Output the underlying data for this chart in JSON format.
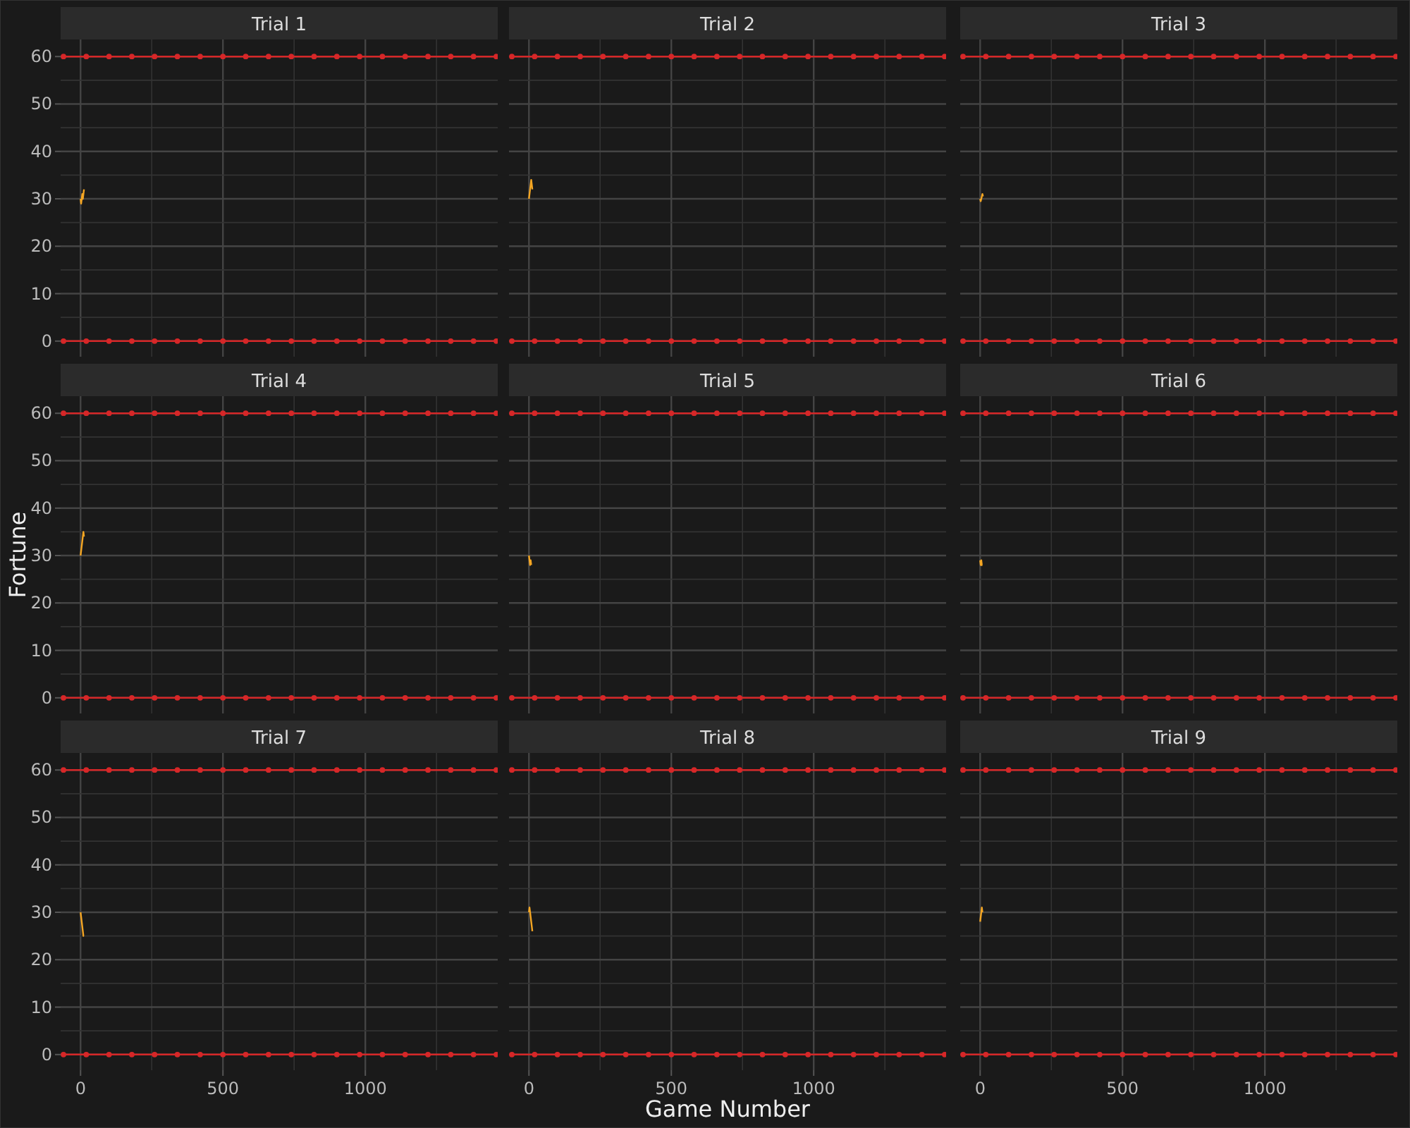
{
  "chart_data": [
    {
      "type": "line",
      "title": "Trial 1",
      "x": [
        0,
        2,
        4,
        6,
        8,
        10,
        12
      ],
      "series": [
        {
          "color": "#f5a623",
          "values": [
            30,
            29,
            30,
            31,
            30,
            31,
            32
          ]
        },
        {
          "color": "#d62728",
          "marker": "circle",
          "x": [
            -60,
            20,
            100,
            180,
            260,
            340,
            420,
            500,
            580,
            660,
            740,
            820,
            900,
            980,
            1060,
            1140,
            1220,
            1300,
            1380,
            1460
          ],
          "values": [
            0,
            0,
            0,
            0,
            0,
            0,
            0,
            0,
            0,
            0,
            0,
            0,
            0,
            0,
            0,
            0,
            0,
            0,
            0,
            0
          ]
        },
        {
          "color": "#d62728",
          "marker": "circle",
          "x": [
            -60,
            20,
            100,
            180,
            260,
            340,
            420,
            500,
            580,
            660,
            740,
            820,
            900,
            980,
            1060,
            1140,
            1220,
            1300,
            1380,
            1460
          ],
          "values": [
            60,
            60,
            60,
            60,
            60,
            60,
            60,
            60,
            60,
            60,
            60,
            60,
            60,
            60,
            60,
            60,
            60,
            60,
            60,
            60
          ]
        }
      ],
      "xlim": [
        -70,
        1465
      ],
      "ylim": [
        -3.3,
        63.6
      ],
      "xticks": [
        0,
        {
          "value": 250,
          "label": null
        },
        500,
        {
          "value": 750,
          "label": null
        },
        1000,
        {
          "value": 1250,
          "label": null
        }
      ],
      "yticks": [
        0,
        {
          "value": 5,
          "label": null
        },
        10,
        {
          "value": 15,
          "label": null
        },
        20,
        {
          "value": 25,
          "label": null
        },
        30,
        {
          "value": 35,
          "label": null
        },
        40,
        {
          "value": 45,
          "label": null
        },
        50,
        {
          "value": 55,
          "label": null
        },
        60
      ],
      "grid": true,
      "tick_labels": "y"
    },
    {
      "type": "line",
      "title": "Trial 2",
      "x": [
        0,
        2,
        4,
        6,
        8,
        10,
        12
      ],
      "series": [
        {
          "color": "#f5a623",
          "values": [
            30,
            31,
            32,
            33,
            34,
            33,
            32
          ]
        },
        {
          "color": "#d62728",
          "marker": "circle",
          "x": [
            -60,
            20,
            100,
            180,
            260,
            340,
            420,
            500,
            580,
            660,
            740,
            820,
            900,
            980,
            1060,
            1140,
            1220,
            1300,
            1380,
            1460
          ],
          "values": [
            0,
            0,
            0,
            0,
            0,
            0,
            0,
            0,
            0,
            0,
            0,
            0,
            0,
            0,
            0,
            0,
            0,
            0,
            0,
            0
          ]
        },
        {
          "color": "#d62728",
          "marker": "circle",
          "x": [
            -60,
            20,
            100,
            180,
            260,
            340,
            420,
            500,
            580,
            660,
            740,
            820,
            900,
            980,
            1060,
            1140,
            1220,
            1300,
            1380,
            1460
          ],
          "values": [
            60,
            60,
            60,
            60,
            60,
            60,
            60,
            60,
            60,
            60,
            60,
            60,
            60,
            60,
            60,
            60,
            60,
            60,
            60,
            60
          ]
        }
      ],
      "xlim": [
        -70,
        1465
      ],
      "ylim": [
        -3.3,
        63.6
      ],
      "xticks": [
        0,
        {
          "value": 250,
          "label": null
        },
        500,
        {
          "value": 750,
          "label": null
        },
        1000,
        {
          "value": 1250,
          "label": null
        }
      ],
      "yticks": [
        0,
        {
          "value": 5,
          "label": null
        },
        10,
        {
          "value": 15,
          "label": null
        },
        20,
        {
          "value": 25,
          "label": null
        },
        30,
        {
          "value": 35,
          "label": null
        },
        40,
        {
          "value": 45,
          "label": null
        },
        50,
        {
          "value": 55,
          "label": null
        },
        60
      ],
      "grid": true,
      "tick_labels": false
    },
    {
      "type": "line",
      "title": "Trial 3",
      "x": [
        0,
        2,
        4,
        6,
        8,
        10
      ],
      "series": [
        {
          "color": "#f5a623",
          "values": [
            30,
            29.5,
            30,
            30.5,
            31,
            30.5
          ]
        },
        {
          "color": "#d62728",
          "marker": "circle",
          "x": [
            -60,
            20,
            100,
            180,
            260,
            340,
            420,
            500,
            580,
            660,
            740,
            820,
            900,
            980,
            1060,
            1140,
            1220,
            1300,
            1380,
            1460
          ],
          "values": [
            0,
            0,
            0,
            0,
            0,
            0,
            0,
            0,
            0,
            0,
            0,
            0,
            0,
            0,
            0,
            0,
            0,
            0,
            0,
            0
          ]
        },
        {
          "color": "#d62728",
          "marker": "circle",
          "x": [
            -60,
            20,
            100,
            180,
            260,
            340,
            420,
            500,
            580,
            660,
            740,
            820,
            900,
            980,
            1060,
            1140,
            1220,
            1300,
            1380,
            1460
          ],
          "values": [
            60,
            60,
            60,
            60,
            60,
            60,
            60,
            60,
            60,
            60,
            60,
            60,
            60,
            60,
            60,
            60,
            60,
            60,
            60,
            60
          ]
        }
      ],
      "xlim": [
        -70,
        1465
      ],
      "ylim": [
        -3.3,
        63.6
      ],
      "xticks": [
        0,
        {
          "value": 250,
          "label": null
        },
        500,
        {
          "value": 750,
          "label": null
        },
        1000,
        {
          "value": 1250,
          "label": null
        }
      ],
      "yticks": [
        0,
        {
          "value": 5,
          "label": null
        },
        10,
        {
          "value": 15,
          "label": null
        },
        20,
        {
          "value": 25,
          "label": null
        },
        30,
        {
          "value": 35,
          "label": null
        },
        40,
        {
          "value": 45,
          "label": null
        },
        50,
        {
          "value": 55,
          "label": null
        },
        60
      ],
      "grid": true,
      "tick_labels": false
    },
    {
      "type": "line",
      "title": "Trial 4",
      "ylabel": "Fortune",
      "x": [
        0,
        2,
        4,
        6,
        8,
        10,
        12
      ],
      "series": [
        {
          "color": "#f5a623",
          "values": [
            30,
            31,
            32,
            33,
            34,
            35,
            34
          ]
        },
        {
          "color": "#d62728",
          "marker": "circle",
          "x": [
            -60,
            20,
            100,
            180,
            260,
            340,
            420,
            500,
            580,
            660,
            740,
            820,
            900,
            980,
            1060,
            1140,
            1220,
            1300,
            1380,
            1460
          ],
          "values": [
            0,
            0,
            0,
            0,
            0,
            0,
            0,
            0,
            0,
            0,
            0,
            0,
            0,
            0,
            0,
            0,
            0,
            0,
            0,
            0
          ]
        },
        {
          "color": "#d62728",
          "marker": "circle",
          "x": [
            -60,
            20,
            100,
            180,
            260,
            340,
            420,
            500,
            580,
            660,
            740,
            820,
            900,
            980,
            1060,
            1140,
            1220,
            1300,
            1380,
            1460
          ],
          "values": [
            60,
            60,
            60,
            60,
            60,
            60,
            60,
            60,
            60,
            60,
            60,
            60,
            60,
            60,
            60,
            60,
            60,
            60,
            60,
            60
          ]
        }
      ],
      "xlim": [
        -70,
        1465
      ],
      "ylim": [
        -3.3,
        63.6
      ],
      "xticks": [
        0,
        {
          "value": 250,
          "label": null
        },
        500,
        {
          "value": 750,
          "label": null
        },
        1000,
        {
          "value": 1250,
          "label": null
        }
      ],
      "yticks": [
        0,
        {
          "value": 5,
          "label": null
        },
        10,
        {
          "value": 15,
          "label": null
        },
        20,
        {
          "value": 25,
          "label": null
        },
        30,
        {
          "value": 35,
          "label": null
        },
        40,
        {
          "value": 45,
          "label": null
        },
        50,
        {
          "value": 55,
          "label": null
        },
        60
      ],
      "grid": true,
      "tick_labels": "y"
    },
    {
      "type": "line",
      "title": "Trial 5",
      "x": [
        0,
        2,
        4,
        6,
        8
      ],
      "series": [
        {
          "color": "#f5a623",
          "values": [
            30,
            29,
            28,
            29,
            28
          ]
        },
        {
          "color": "#d62728",
          "marker": "circle",
          "x": [
            -60,
            20,
            100,
            180,
            260,
            340,
            420,
            500,
            580,
            660,
            740,
            820,
            900,
            980,
            1060,
            1140,
            1220,
            1300,
            1380,
            1460
          ],
          "values": [
            0,
            0,
            0,
            0,
            0,
            0,
            0,
            0,
            0,
            0,
            0,
            0,
            0,
            0,
            0,
            0,
            0,
            0,
            0,
            0
          ]
        },
        {
          "color": "#d62728",
          "marker": "circle",
          "x": [
            -60,
            20,
            100,
            180,
            260,
            340,
            420,
            500,
            580,
            660,
            740,
            820,
            900,
            980,
            1060,
            1140,
            1220,
            1300,
            1380,
            1460
          ],
          "values": [
            60,
            60,
            60,
            60,
            60,
            60,
            60,
            60,
            60,
            60,
            60,
            60,
            60,
            60,
            60,
            60,
            60,
            60,
            60,
            60
          ]
        }
      ],
      "xlim": [
        -70,
        1465
      ],
      "ylim": [
        -3.3,
        63.6
      ],
      "xticks": [
        0,
        {
          "value": 250,
          "label": null
        },
        500,
        {
          "value": 750,
          "label": null
        },
        1000,
        {
          "value": 1250,
          "label": null
        }
      ],
      "yticks": [
        0,
        {
          "value": 5,
          "label": null
        },
        10,
        {
          "value": 15,
          "label": null
        },
        20,
        {
          "value": 25,
          "label": null
        },
        30,
        {
          "value": 35,
          "label": null
        },
        40,
        {
          "value": 45,
          "label": null
        },
        50,
        {
          "value": 55,
          "label": null
        },
        60
      ],
      "grid": true,
      "tick_labels": false
    },
    {
      "type": "line",
      "title": "Trial 6",
      "x": [
        0,
        2,
        4,
        6,
        8
      ],
      "series": [
        {
          "color": "#f5a623",
          "values": [
            29,
            28,
            29,
            28,
            28
          ]
        },
        {
          "color": "#d62728",
          "marker": "circle",
          "x": [
            -60,
            20,
            100,
            180,
            260,
            340,
            420,
            500,
            580,
            660,
            740,
            820,
            900,
            980,
            1060,
            1140,
            1220,
            1300,
            1380,
            1460
          ],
          "values": [
            0,
            0,
            0,
            0,
            0,
            0,
            0,
            0,
            0,
            0,
            0,
            0,
            0,
            0,
            0,
            0,
            0,
            0,
            0,
            0
          ]
        },
        {
          "color": "#d62728",
          "marker": "circle",
          "x": [
            -60,
            20,
            100,
            180,
            260,
            340,
            420,
            500,
            580,
            660,
            740,
            820,
            900,
            980,
            1060,
            1140,
            1220,
            1300,
            1380,
            1460
          ],
          "values": [
            60,
            60,
            60,
            60,
            60,
            60,
            60,
            60,
            60,
            60,
            60,
            60,
            60,
            60,
            60,
            60,
            60,
            60,
            60,
            60
          ]
        }
      ],
      "xlim": [
        -70,
        1465
      ],
      "ylim": [
        -3.3,
        63.6
      ],
      "xticks": [
        0,
        {
          "value": 250,
          "label": null
        },
        500,
        {
          "value": 750,
          "label": null
        },
        1000,
        {
          "value": 1250,
          "label": null
        }
      ],
      "yticks": [
        0,
        {
          "value": 5,
          "label": null
        },
        10,
        {
          "value": 15,
          "label": null
        },
        20,
        {
          "value": 25,
          "label": null
        },
        30,
        {
          "value": 35,
          "label": null
        },
        40,
        {
          "value": 45,
          "label": null
        },
        50,
        {
          "value": 55,
          "label": null
        },
        60
      ],
      "grid": true,
      "tick_labels": false
    },
    {
      "type": "line",
      "title": "Trial 7",
      "x": [
        0,
        2,
        4,
        6,
        8,
        10,
        12
      ],
      "series": [
        {
          "color": "#f5a623",
          "values": [
            30,
            29,
            28,
            27,
            26,
            25,
            25
          ]
        },
        {
          "color": "#d62728",
          "marker": "circle",
          "x": [
            -60,
            20,
            100,
            180,
            260,
            340,
            420,
            500,
            580,
            660,
            740,
            820,
            900,
            980,
            1060,
            1140,
            1220,
            1300,
            1380,
            1460
          ],
          "values": [
            0,
            0,
            0,
            0,
            0,
            0,
            0,
            0,
            0,
            0,
            0,
            0,
            0,
            0,
            0,
            0,
            0,
            0,
            0,
            0
          ]
        },
        {
          "color": "#d62728",
          "marker": "circle",
          "x": [
            -60,
            20,
            100,
            180,
            260,
            340,
            420,
            500,
            580,
            660,
            740,
            820,
            900,
            980,
            1060,
            1140,
            1220,
            1300,
            1380,
            1460
          ],
          "values": [
            60,
            60,
            60,
            60,
            60,
            60,
            60,
            60,
            60,
            60,
            60,
            60,
            60,
            60,
            60,
            60,
            60,
            60,
            60,
            60
          ]
        }
      ],
      "xlim": [
        -70,
        1465
      ],
      "ylim": [
        -3.3,
        63.6
      ],
      "xticks": [
        0,
        {
          "value": 250,
          "label": null
        },
        500,
        {
          "value": 750,
          "label": null
        },
        1000,
        {
          "value": 1250,
          "label": null
        }
      ],
      "yticks": [
        0,
        {
          "value": 5,
          "label": null
        },
        10,
        {
          "value": 15,
          "label": null
        },
        20,
        {
          "value": 25,
          "label": null
        },
        30,
        {
          "value": 35,
          "label": null
        },
        40,
        {
          "value": 45,
          "label": null
        },
        50,
        {
          "value": 55,
          "label": null
        },
        60
      ],
      "grid": true
    },
    {
      "type": "line",
      "title": "Trial 8",
      "xlabel": "Game Number",
      "x": [
        0,
        2,
        4,
        6,
        8,
        10,
        12
      ],
      "series": [
        {
          "color": "#f5a623",
          "values": [
            30,
            31,
            30,
            29,
            28,
            27,
            26
          ]
        },
        {
          "color": "#d62728",
          "marker": "circle",
          "x": [
            -60,
            20,
            100,
            180,
            260,
            340,
            420,
            500,
            580,
            660,
            740,
            820,
            900,
            980,
            1060,
            1140,
            1220,
            1300,
            1380,
            1460
          ],
          "values": [
            0,
            0,
            0,
            0,
            0,
            0,
            0,
            0,
            0,
            0,
            0,
            0,
            0,
            0,
            0,
            0,
            0,
            0,
            0,
            0
          ]
        },
        {
          "color": "#d62728",
          "marker": "circle",
          "x": [
            -60,
            20,
            100,
            180,
            260,
            340,
            420,
            500,
            580,
            660,
            740,
            820,
            900,
            980,
            1060,
            1140,
            1220,
            1300,
            1380,
            1460
          ],
          "values": [
            60,
            60,
            60,
            60,
            60,
            60,
            60,
            60,
            60,
            60,
            60,
            60,
            60,
            60,
            60,
            60,
            60,
            60,
            60,
            60
          ]
        }
      ],
      "xlim": [
        -70,
        1465
      ],
      "ylim": [
        -3.3,
        63.6
      ],
      "xticks": [
        0,
        {
          "value": 250,
          "label": null
        },
        500,
        {
          "value": 750,
          "label": null
        },
        1000,
        {
          "value": 1250,
          "label": null
        }
      ],
      "yticks": [
        0,
        {
          "value": 5,
          "label": null
        },
        10,
        {
          "value": 15,
          "label": null
        },
        20,
        {
          "value": 25,
          "label": null
        },
        30,
        {
          "value": 35,
          "label": null
        },
        40,
        {
          "value": 45,
          "label": null
        },
        50,
        {
          "value": 55,
          "label": null
        },
        60
      ],
      "grid": true,
      "tick_labels": "x"
    },
    {
      "type": "line",
      "title": "Trial 9",
      "x": [
        0,
        2,
        4,
        6,
        8
      ],
      "series": [
        {
          "color": "#f5a623",
          "values": [
            28,
            29,
            30,
            31,
            30
          ]
        },
        {
          "color": "#d62728",
          "marker": "circle",
          "x": [
            -60,
            20,
            100,
            180,
            260,
            340,
            420,
            500,
            580,
            660,
            740,
            820,
            900,
            980,
            1060,
            1140,
            1220,
            1300,
            1380,
            1460
          ],
          "values": [
            0,
            0,
            0,
            0,
            0,
            0,
            0,
            0,
            0,
            0,
            0,
            0,
            0,
            0,
            0,
            0,
            0,
            0,
            0,
            0
          ]
        },
        {
          "color": "#d62728",
          "marker": "circle",
          "x": [
            -60,
            20,
            100,
            180,
            260,
            340,
            420,
            500,
            580,
            660,
            740,
            820,
            900,
            980,
            1060,
            1140,
            1220,
            1300,
            1380,
            1460
          ],
          "values": [
            60,
            60,
            60,
            60,
            60,
            60,
            60,
            60,
            60,
            60,
            60,
            60,
            60,
            60,
            60,
            60,
            60,
            60,
            60,
            60
          ]
        }
      ],
      "xlim": [
        -70,
        1465
      ],
      "ylim": [
        -3.3,
        63.6
      ],
      "xticks": [
        0,
        {
          "value": 250,
          "label": null
        },
        500,
        {
          "value": 750,
          "label": null
        },
        1000,
        {
          "value": 1250,
          "label": null
        }
      ],
      "yticks": [
        0,
        {
          "value": 5,
          "label": null
        },
        10,
        {
          "value": 15,
          "label": null
        },
        20,
        {
          "value": 25,
          "label": null
        },
        30,
        {
          "value": 35,
          "label": null
        },
        40,
        {
          "value": 45,
          "label": null
        },
        50,
        {
          "value": 55,
          "label": null
        },
        60
      ],
      "grid": true,
      "tick_labels": "x"
    }
  ]
}
